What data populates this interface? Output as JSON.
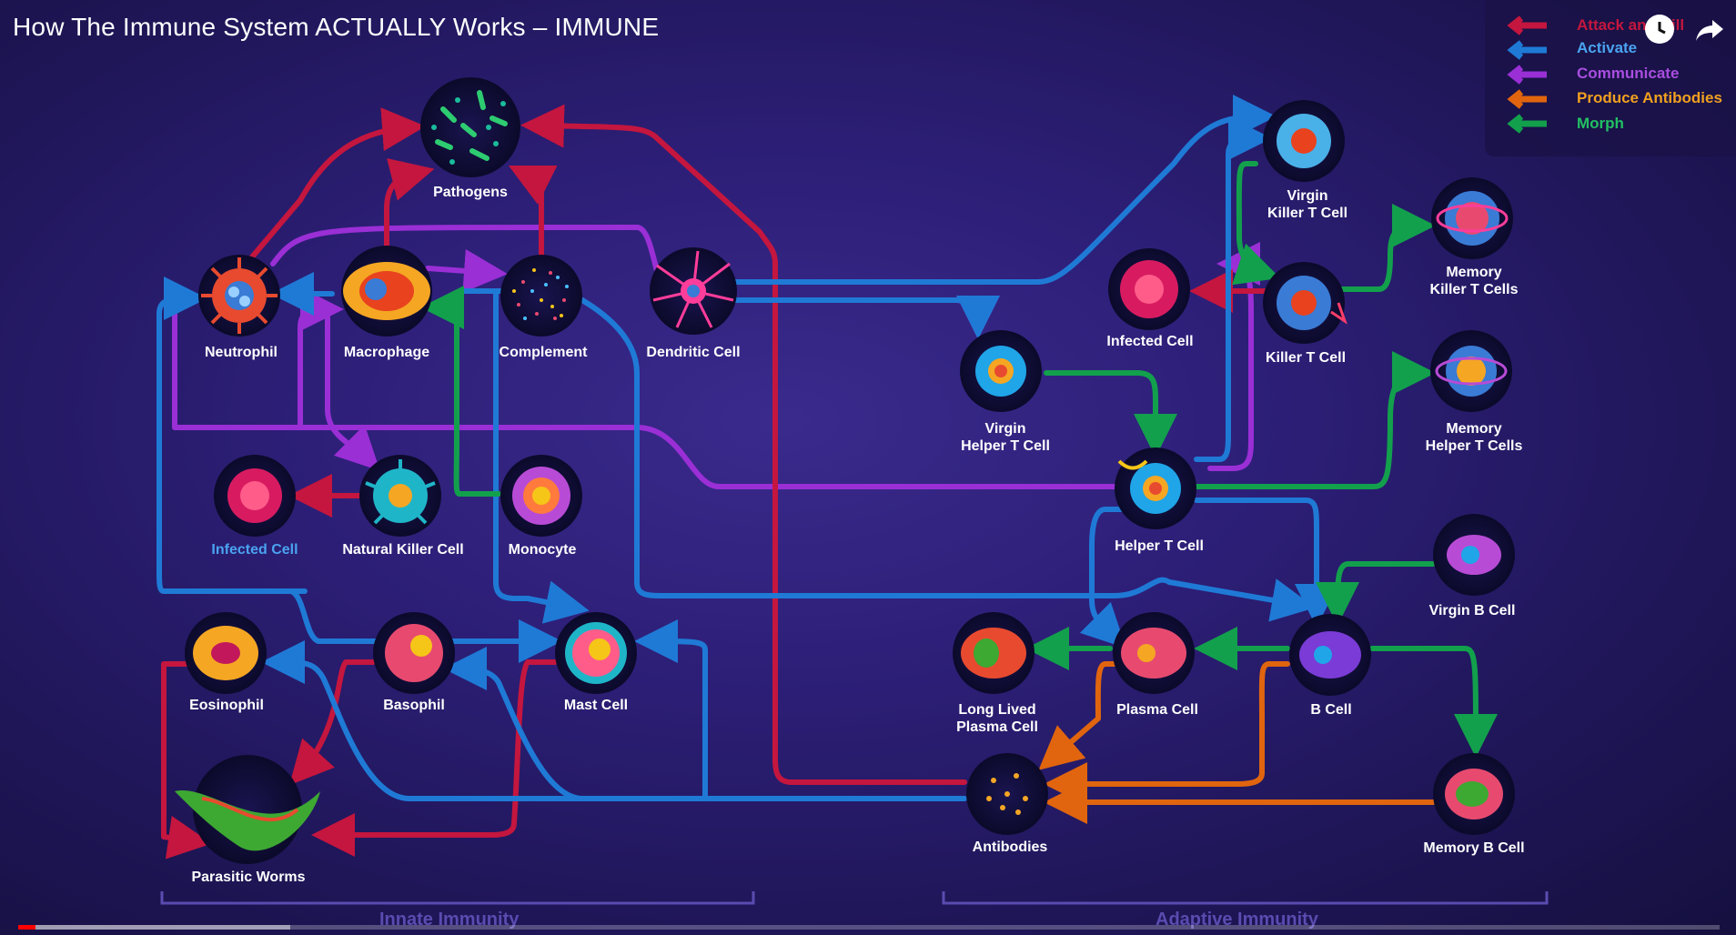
{
  "video": {
    "title": "How The Immune System ACTUALLY Works – IMMUNE",
    "progress_played": 0.01,
    "progress_loaded": 0.16
  },
  "legend": [
    {
      "label": "Attack and Kill",
      "color": "#c4163e"
    },
    {
      "label": "Activate",
      "color": "#1f7ad6"
    },
    {
      "label": "Communicate",
      "color": "#9a2fd6"
    },
    {
      "label": "Produce Antibodies",
      "color": "#e0650e"
    },
    {
      "label": "Morph",
      "color": "#12a04c"
    }
  ],
  "nodes": {
    "pathogens": "Pathogens",
    "neutrophil": "Neutrophil",
    "macrophage": "Macrophage",
    "complement": "Complement",
    "dendritic": "Dendritic Cell",
    "infected_left": "Infected Cell",
    "nk": "Natural Killer Cell",
    "monocyte": "Monocyte",
    "eosinophil": "Eosinophil",
    "basophil": "Basophil",
    "mast": "Mast Cell",
    "worms": "Parasitic Worms",
    "virgin_killer": "Virgin\nKiller T Cell",
    "memory_killer": "Memory\nKiller T Cells",
    "infected_right": "Infected Cell",
    "killer_t": "Killer T Cell",
    "virgin_helper": "Virgin\nHelper T Cell",
    "memory_helper": "Memory\nHelper T Cells",
    "helper_t": "Helper T Cell",
    "virgin_b": "Virgin B Cell",
    "long_plasma": "Long Lived\nPlasma Cell",
    "plasma": "Plasma Cell",
    "b_cell": "B Cell",
    "antibodies": "Antibodies",
    "memory_b": "Memory B Cell"
  },
  "sections": {
    "innate": "Innate Immunity",
    "adaptive": "Adaptive Immunity"
  },
  "controls": {
    "watch_later_icon": "clock-icon",
    "share_icon": "share-icon"
  }
}
